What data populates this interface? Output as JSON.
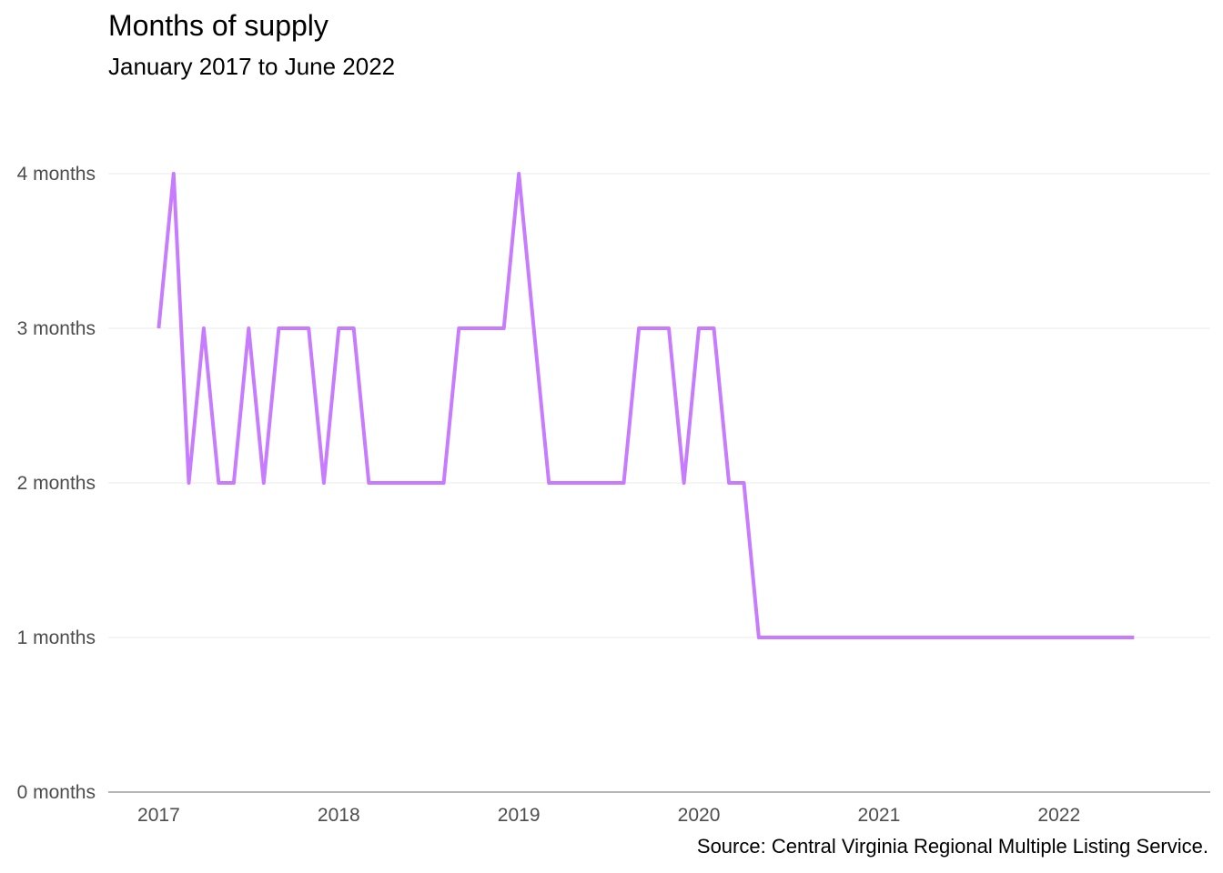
{
  "chart_data": {
    "type": "line",
    "title": "Months of supply",
    "subtitle": "January 2017 to June 2022",
    "caption": "Source: Central Virginia Regional Multiple Listing Service.",
    "xlabel": "",
    "ylabel": "",
    "ylim": [
      0,
      4
    ],
    "y_ticks": [
      0,
      1,
      2,
      3,
      4
    ],
    "y_tick_labels": [
      "0 months",
      "1 months",
      "2 months",
      "3 months",
      "4 months"
    ],
    "x_ticks": [
      2017,
      2018,
      2019,
      2020,
      2021,
      2022
    ],
    "x_tick_labels": [
      "2017",
      "2018",
      "2019",
      "2020",
      "2021",
      "2022"
    ],
    "grid": true,
    "line_color": "#c77cff",
    "series": [
      {
        "x": [
          2017.0,
          2017.083,
          2017.167,
          2017.25,
          2017.333,
          2017.417,
          2017.5,
          2017.583,
          2017.667,
          2017.75,
          2017.833,
          2017.917,
          2018.0,
          2018.083,
          2018.167,
          2018.25,
          2018.333,
          2018.417,
          2018.5,
          2018.583,
          2018.667,
          2018.75,
          2018.833,
          2018.917,
          2019.0,
          2019.083,
          2019.167,
          2019.25,
          2019.333,
          2019.417,
          2019.5,
          2019.583,
          2019.667,
          2019.75,
          2019.833,
          2019.917,
          2020.0,
          2020.083,
          2020.167,
          2020.25,
          2020.333,
          2020.417,
          2020.5,
          2020.583,
          2020.667,
          2020.75,
          2020.833,
          2020.917,
          2021.0,
          2021.083,
          2021.167,
          2021.25,
          2021.333,
          2021.417,
          2021.5,
          2021.583,
          2021.667,
          2021.75,
          2021.833,
          2021.917,
          2022.0,
          2022.083,
          2022.167,
          2022.25,
          2022.333,
          2022.417
        ],
        "y": [
          3,
          4,
          2,
          3,
          2,
          2,
          3,
          2,
          3,
          3,
          3,
          2,
          3,
          3,
          2,
          2,
          2,
          2,
          2,
          2,
          3,
          3,
          3,
          3,
          4,
          3,
          2,
          2,
          2,
          2,
          2,
          2,
          3,
          3,
          3,
          2,
          3,
          3,
          2,
          2,
          1,
          1,
          1,
          1,
          1,
          1,
          1,
          1,
          1,
          1,
          1,
          1,
          1,
          1,
          1,
          1,
          1,
          1,
          1,
          1,
          1,
          1,
          1,
          1,
          1,
          1
        ]
      }
    ]
  }
}
